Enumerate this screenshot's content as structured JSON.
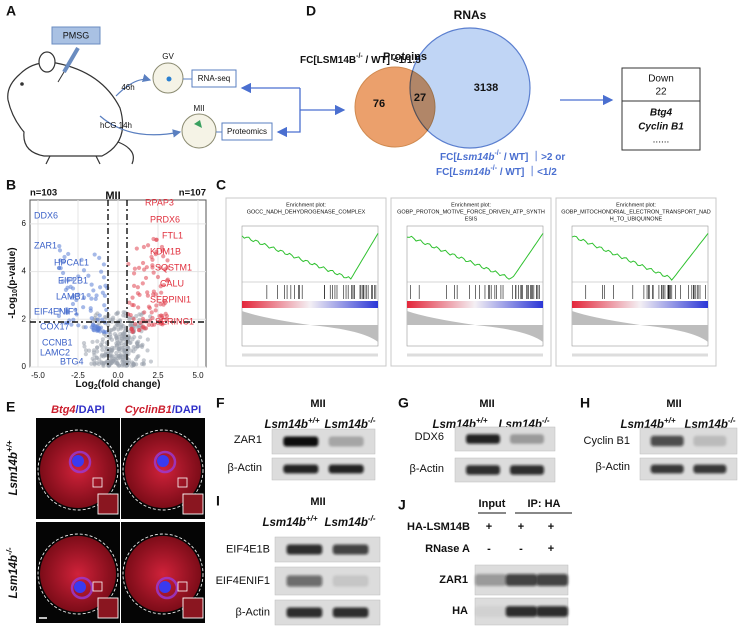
{
  "A": {
    "label": "A",
    "hormone": "PMSG",
    "time_gv": "46h",
    "time_mii": "hCG 14h",
    "gv": "GV",
    "mii": "MII",
    "rna": "RNA-seq",
    "protein": "Proteomics"
  },
  "D": {
    "label": "D",
    "proteins": "Proteins",
    "rnas": "RNAs",
    "protein_only": 76,
    "overlap": 27,
    "rna_only": 3138,
    "protein_fc": {
      "pre": "FC[LSM14B",
      "sup": "-/-",
      "post": " / WT] <1/1.5"
    },
    "rna_fc": [
      {
        "pre": "FC[",
        "gene": "Lsm14b",
        "sup": "-/-",
        "post": " / WT] ｜>2 or"
      },
      {
        "pre": "FC[",
        "gene": "Lsm14b",
        "sup": "-/-",
        "post": " / WT] ｜<1/2"
      }
    ],
    "box": {
      "title": "Down",
      "count": 22,
      "genes": [
        "Btg4",
        "Cyclin B1"
      ],
      "more": "......"
    }
  },
  "B": {
    "label": "B",
    "stage": "MII",
    "n_down": "n=103",
    "n_up": "n=107",
    "down_genes": [
      "DDX6",
      "ZAR1",
      "HPCAL1",
      "EIF2B1",
      "LAMB1",
      "EIF4ENIF1",
      "COX17",
      "CCNB1",
      "LAMC2",
      "BTG4"
    ],
    "up_genes": [
      "RPAP3",
      "PRDX6",
      "FTL1",
      "KDM1B",
      "SQSTM1",
      "CALU",
      "SERPINI1",
      "SERINC1"
    ],
    "xlabel": {
      "pre": "Log",
      "sub": "2",
      "post": "(fold change)"
    },
    "ylabel": {
      "pre": "-Log",
      "sub": "10",
      "post": "(p-value)"
    },
    "xlim": [
      -5.5,
      5.5
    ],
    "ylim": [
      0,
      7
    ],
    "xticks": [
      {
        "value": -5,
        "label": "-5.0"
      },
      {
        "value": -2.5,
        "label": "-2.5"
      },
      {
        "value": 0,
        "label": "0.0"
      },
      {
        "value": 2.5,
        "label": "2.5"
      },
      {
        "value": 5,
        "label": "5.0"
      }
    ],
    "yticks": [
      0,
      2,
      4,
      6
    ]
  },
  "C": {
    "label": "C",
    "plots": [
      {
        "heading": "Enrichment plot:",
        "term": [
          "GOCC_NADH_DEHYDROGENASE_COMPLEX"
        ]
      },
      {
        "heading": "Enrichment plot:",
        "term": [
          "GOBP_PROTON_MOTIVE_FORCE_DRIVEN_ATP_SYNTH",
          "ESIS"
        ]
      },
      {
        "heading": "Enrichment plot:",
        "term": [
          "GOBP_MITOCHONDRIAL_ELECTRON_TRANSPORT_NAD",
          "H_TO_UBIQUINONE"
        ]
      }
    ]
  },
  "E": {
    "label": "E",
    "columns": [
      {
        "gene": "Btg4",
        "stain": "/DAPI"
      },
      {
        "gene": "CyclinB1",
        "stain": "/DAPI"
      }
    ],
    "rows": [
      {
        "gene": "Lsm14b",
        "sup": "+/+"
      },
      {
        "gene": "Lsm14b",
        "sup": "-/-"
      }
    ]
  },
  "F": {
    "label": "F",
    "stage": "MII",
    "genotypes": [
      {
        "gene": "Lsm14b",
        "sup": "+/+"
      },
      {
        "gene": "Lsm14b",
        "sup": "-/-"
      }
    ],
    "proteins": [
      "ZAR1",
      "β-Actin"
    ]
  },
  "G": {
    "label": "G",
    "stage": "MII",
    "genotypes": [
      {
        "gene": "Lsm14b",
        "sup": "+/+"
      },
      {
        "gene": "Lsm14b",
        "sup": "-/-"
      }
    ],
    "proteins": [
      "DDX6",
      "β-Actin"
    ]
  },
  "H": {
    "label": "H",
    "stage": "MII",
    "genotypes": [
      {
        "gene": "Lsm14b",
        "sup": "+/+"
      },
      {
        "gene": "Lsm14b",
        "sup": "-/-"
      }
    ],
    "proteins": [
      "Cyclin B1",
      "β-Actin"
    ]
  },
  "I": {
    "label": "I",
    "stage": "MII",
    "genotypes": [
      {
        "gene": "Lsm14b",
        "sup": "+/+"
      },
      {
        "gene": "Lsm14b",
        "sup": "-/-"
      }
    ],
    "proteins": [
      "EIF4E1B",
      "EIF4ENIF1",
      "β-Actin"
    ]
  },
  "J": {
    "label": "J",
    "input": "Input",
    "ip": "IP: HA",
    "rows": [
      {
        "name": "HA-LSM14B",
        "signs": [
          "+",
          "+",
          "+"
        ]
      },
      {
        "name": "RNase A",
        "signs": [
          "-",
          "-",
          "+"
        ]
      }
    ],
    "proteins": [
      "ZAR1",
      "HA"
    ]
  }
}
